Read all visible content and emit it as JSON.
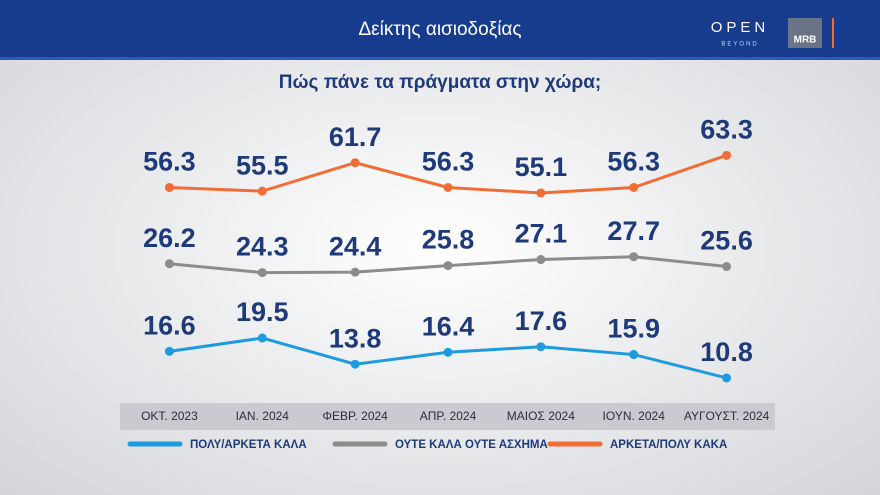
{
  "chart_data": {
    "type": "line",
    "title": "Δείκτης αισιοδοξίας",
    "subtitle": "Πώς πάνε τα πράγματα στην χώρα;",
    "categories": [
      "ΟΚΤ. 2023",
      "ΙΑΝ. 2024",
      "ΦΕΒΡ. 2024",
      "ΑΠΡ. 2024",
      "ΜΑΙΟΣ 2024",
      "ΙΟΥΝ. 2024",
      "ΑΥΓΟΥΣΤ. 2024"
    ],
    "series": [
      {
        "name": "ΠΟΛΥ/ΑΡΚΕΤΑ ΚΑΛΑ",
        "color": "#1e9be0",
        "values": [
          16.6,
          19.5,
          13.8,
          16.4,
          17.6,
          15.9,
          10.8
        ],
        "ylim": [
          6,
          67
        ]
      },
      {
        "name": "ΟΥΤΕ ΚΑΛΑ ΟΥΤΕ ΑΣΧΗΜΑ",
        "color": "#8c8c8c",
        "values": [
          26.2,
          24.3,
          24.4,
          25.8,
          27.1,
          27.7,
          25.6
        ],
        "ylim": [
          -3,
          57
        ]
      },
      {
        "name": "ΑΡΚΕΤΑ/ΠΟΛΥ ΚΑΚΑ",
        "color": "#f26d35",
        "values": [
          56.3,
          55.5,
          61.7,
          56.3,
          55.1,
          56.3,
          63.3
        ],
        "ylim": [
          10,
          71
        ]
      }
    ]
  },
  "header": {
    "logo": "OPEN",
    "logo_sub": "BEYOND",
    "brand": "MRB"
  }
}
